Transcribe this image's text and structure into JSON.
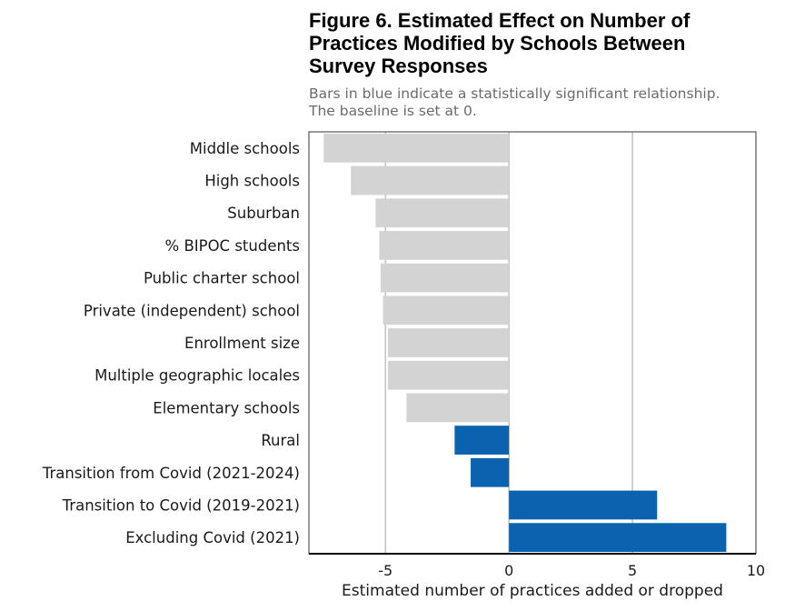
{
  "chart_data": {
    "type": "bar",
    "orientation": "horizontal",
    "title": "Figure 6. Estimated Effect on Number of Practices Modified by Schools Between Survey Responses",
    "title_lines": [
      "Figure 6. Estimated Effect on Number of",
      "Practices Modified by Schools Between",
      "Survey Responses"
    ],
    "subtitle_lines": [
      "Bars in blue indicate a statistically significant relationship.",
      "The baseline is set at 0."
    ],
    "xlabel": "Estimated number of practices added or dropped",
    "ylabel": "",
    "xlim": [
      -8.1,
      10
    ],
    "xticks": [
      -5,
      0,
      5,
      10
    ],
    "xtick_labels": [
      "-5",
      "0",
      "5",
      "10"
    ],
    "grid": true,
    "categories": [
      "Middle schools",
      "High schools",
      "Suburban",
      "% BIPOC students",
      "Public charter school",
      "Private (independent) school",
      "Enrollment size",
      "Multiple geographic locales",
      "Elementary schools",
      "Rural",
      "Transition from Covid (2021-2024)",
      "Transition to Covid (2019-2021)",
      "Excluding Covid (2021)"
    ],
    "values": [
      -7.5,
      -6.4,
      -5.4,
      -5.25,
      -5.2,
      -5.1,
      -4.9,
      -4.9,
      -4.15,
      -2.2,
      -1.55,
      6.0,
      8.8
    ],
    "significant": [
      false,
      false,
      false,
      false,
      false,
      false,
      false,
      false,
      false,
      true,
      true,
      true,
      true
    ],
    "colors": {
      "significant": "#0b63b0",
      "not_significant": "#d3d3d3",
      "grid": "#c4c4c4",
      "axis": "#000000",
      "frame": "#333333"
    }
  }
}
